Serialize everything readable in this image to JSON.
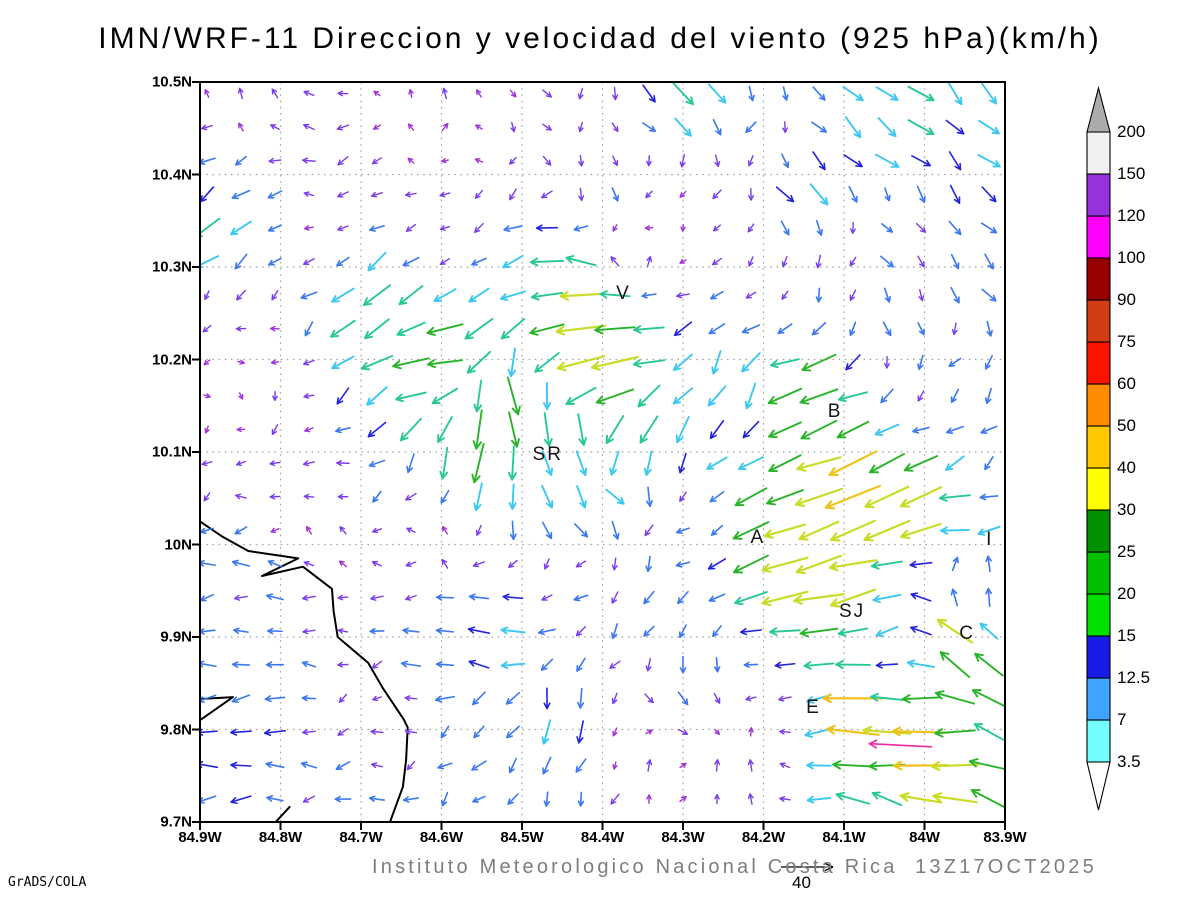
{
  "title": "IMN/WRF-11 Direccion y velocidad del viento (925 hPa)(km/h)",
  "footer": {
    "subtitle": "Instituto Meteorologico Nacional Costa Rica  13Z17OCT2025",
    "stamp": "GrADS/COLA",
    "ref_label": "40"
  },
  "chart_data": {
    "type": "vector_field",
    "variable": "wind direction and speed",
    "units": "km/h",
    "level": "925 hPa",
    "lon_west_range": [
      84.9,
      83.9
    ],
    "lat_range": [
      9.7,
      10.5
    ],
    "grid": {
      "cols": 24,
      "rows": 22
    },
    "reference_speed": 40,
    "x_ticks": [
      {
        "value": 84.9,
        "label": "84.9W"
      },
      {
        "value": 84.8,
        "label": "84.8W"
      },
      {
        "value": 84.7,
        "label": "84.7W"
      },
      {
        "value": 84.6,
        "label": "84.6W"
      },
      {
        "value": 84.5,
        "label": "84.5W"
      },
      {
        "value": 84.4,
        "label": "84.4W"
      },
      {
        "value": 84.3,
        "label": "84.3W"
      },
      {
        "value": 84.2,
        "label": "84.2W"
      },
      {
        "value": 84.1,
        "label": "84.1W"
      },
      {
        "value": 84.0,
        "label": "84W"
      },
      {
        "value": 83.9,
        "label": "83.9W"
      }
    ],
    "y_ticks": [
      {
        "value": 10.5,
        "label": "10.5N"
      },
      {
        "value": 10.4,
        "label": "10.4N"
      },
      {
        "value": 10.3,
        "label": "10.3N"
      },
      {
        "value": 10.2,
        "label": "10.2N"
      },
      {
        "value": 10.1,
        "label": "10.1N"
      },
      {
        "value": 10.0,
        "label": "10N"
      },
      {
        "value": 9.9,
        "label": "9.9N"
      },
      {
        "value": 9.8,
        "label": "9.8N"
      },
      {
        "value": 9.7,
        "label": "9.7N"
      }
    ],
    "colorbar": {
      "levels": [
        3.5,
        7,
        12.5,
        15,
        20,
        25,
        30,
        40,
        50,
        60,
        75,
        90,
        100,
        120,
        150,
        200
      ],
      "segment_colors": [
        "#73FFFF",
        "#3FA3FF",
        "#1A1AE6",
        "#00E000",
        "#00BE00",
        "#009000",
        "#FFFF00",
        "#FFC800",
        "#FF8C00",
        "#FA1400",
        "#D23C14",
        "#960000",
        "#FF00FF",
        "#9632DC",
        "#F0F0F0"
      ],
      "over_color": "#ABABAB",
      "under_color": "#FFFFFF"
    },
    "arrow_speed_colors": [
      [
        3.5,
        "#A132D7"
      ],
      [
        7,
        "#7A3CEB"
      ],
      [
        12.5,
        "#3C78F0"
      ],
      [
        15,
        "#2323DC"
      ],
      [
        20,
        "#3CC8F0"
      ],
      [
        25,
        "#28C896"
      ],
      [
        30,
        "#28B428"
      ],
      [
        40,
        "#C8DC28"
      ],
      [
        50,
        "#EFC21E"
      ],
      [
        60,
        "#F08C1E"
      ],
      [
        100,
        "#E63214"
      ],
      [
        9999,
        "#F028A0"
      ]
    ],
    "city_labels": [
      {
        "name": "V",
        "lon": 84.374,
        "lat": 10.271
      },
      {
        "name": "B",
        "lon": 84.111,
        "lat": 10.143
      },
      {
        "name": "SR",
        "lon": 84.468,
        "lat": 10.097
      },
      {
        "name": "A",
        "lon": 84.207,
        "lat": 10.007
      },
      {
        "name": "SJ",
        "lon": 84.09,
        "lat": 9.927
      },
      {
        "name": "C",
        "lon": 83.947,
        "lat": 9.903
      },
      {
        "name": "E",
        "lon": 84.138,
        "lat": 9.823
      },
      {
        "name": "I",
        "lon": 83.919,
        "lat": 10.005
      }
    ],
    "control_points": [
      {
        "lon": 84.85,
        "lat": 10.47,
        "u": -3,
        "v": 3
      },
      {
        "lon": 84.6,
        "lat": 10.47,
        "u": 0,
        "v": 4
      },
      {
        "lon": 84.45,
        "lat": 10.45,
        "u": 2,
        "v": -5
      },
      {
        "lon": 84.3,
        "lat": 10.48,
        "u": 14,
        "v": -12
      },
      {
        "lon": 84.05,
        "lat": 10.45,
        "u": 15,
        "v": -13
      },
      {
        "lon": 83.92,
        "lat": 10.42,
        "u": 13,
        "v": -11
      },
      {
        "lon": 84.88,
        "lat": 10.4,
        "u": -8,
        "v": -4
      },
      {
        "lon": 84.9,
        "lat": 10.35,
        "u": -20,
        "v": -13
      },
      {
        "lon": 84.9,
        "lat": 10.25,
        "u": -4,
        "v": -2
      },
      {
        "lon": 84.75,
        "lat": 10.33,
        "u": -4,
        "v": 1
      },
      {
        "lon": 84.6,
        "lat": 10.33,
        "u": -3,
        "v": -3
      },
      {
        "lon": 84.35,
        "lat": 10.32,
        "u": 1,
        "v": 8
      },
      {
        "lon": 84.35,
        "lat": 10.4,
        "u": -2,
        "v": -4
      },
      {
        "lon": 84.2,
        "lat": 10.42,
        "u": -5,
        "v": -5
      },
      {
        "lon": 84.15,
        "lat": 10.38,
        "u": 14,
        "v": -12
      },
      {
        "lon": 84.4,
        "lat": 10.38,
        "u": 6,
        "v": -7
      },
      {
        "lon": 84.35,
        "lat": 10.34,
        "u": -2,
        "v": -5
      },
      {
        "lon": 84.2,
        "lat": 10.3,
        "u": -4,
        "v": -3
      },
      {
        "lon": 84.05,
        "lat": 10.32,
        "u": 6,
        "v": -6
      },
      {
        "lon": 83.95,
        "lat": 10.27,
        "u": 7,
        "v": -7
      },
      {
        "lon": 83.91,
        "lat": 10.34,
        "u": 9,
        "v": -9
      },
      {
        "lon": 84.1,
        "lat": 10.33,
        "u": -3,
        "v": -5
      },
      {
        "lon": 83.92,
        "lat": 10.2,
        "u": -5,
        "v": -8
      },
      {
        "lon": 84.44,
        "lat": 10.3,
        "u": -25,
        "v": 2
      },
      {
        "lon": 84.42,
        "lat": 10.235,
        "u": -35,
        "v": -2
      },
      {
        "lon": 84.4,
        "lat": 10.195,
        "u": -35,
        "v": -3
      },
      {
        "lon": 84.05,
        "lat": 10.24,
        "u": 2,
        "v": -7
      },
      {
        "lon": 84.62,
        "lat": 10.2,
        "u": -30,
        "v": -6
      },
      {
        "lon": 84.55,
        "lat": 10.21,
        "u": -18,
        "v": -14
      },
      {
        "lon": 84.66,
        "lat": 10.25,
        "u": -18,
        "v": -16
      },
      {
        "lon": 84.72,
        "lat": 10.24,
        "u": -16,
        "v": -14
      },
      {
        "lon": 84.52,
        "lat": 10.16,
        "u": 10,
        "v": -26
      },
      {
        "lon": 84.46,
        "lat": 10.12,
        "u": 4,
        "v": -24
      },
      {
        "lon": 84.55,
        "lat": 10.1,
        "u": -5,
        "v": -30
      },
      {
        "lon": 84.48,
        "lat": 10.05,
        "u": 5,
        "v": -16
      },
      {
        "lon": 84.4,
        "lat": 10.04,
        "u": 10,
        "v": -12
      },
      {
        "lon": 84.35,
        "lat": 10.12,
        "u": -10,
        "v": -20
      },
      {
        "lon": 84.25,
        "lat": 10.17,
        "u": -8,
        "v": -14
      },
      {
        "lon": 84.13,
        "lat": 10.16,
        "u": -27,
        "v": -8
      },
      {
        "lon": 84.0,
        "lat": 10.17,
        "u": -5,
        "v": -5
      },
      {
        "lon": 83.92,
        "lat": 10.08,
        "u": -7,
        "v": -7
      },
      {
        "lon": 84.85,
        "lat": 10.18,
        "u": 2,
        "v": -1
      },
      {
        "lon": 84.8,
        "lat": 10.22,
        "u": -2,
        "v": -2
      },
      {
        "lon": 84.8,
        "lat": 10.12,
        "u": -4,
        "v": -2
      },
      {
        "lon": 84.75,
        "lat": 10.03,
        "u": -3,
        "v": 1
      },
      {
        "lon": 84.6,
        "lat": 10.0,
        "u": -3,
        "v": 2
      },
      {
        "lon": 84.45,
        "lat": 9.98,
        "u": -4,
        "v": -2
      },
      {
        "lon": 84.3,
        "lat": 10.02,
        "u": -5,
        "v": -3
      },
      {
        "lon": 84.18,
        "lat": 10.02,
        "u": -30,
        "v": -10
      },
      {
        "lon": 84.08,
        "lat": 10.05,
        "u": -42,
        "v": -16
      },
      {
        "lon": 83.95,
        "lat": 10.02,
        "u": -33,
        "v": -5
      },
      {
        "lon": 84.02,
        "lat": 10.04,
        "u": -28,
        "v": -18
      },
      {
        "lon": 84.12,
        "lat": 9.95,
        "u": -38,
        "v": -8
      },
      {
        "lon": 83.95,
        "lat": 9.965,
        "u": 10,
        "v": 10
      },
      {
        "lon": 83.93,
        "lat": 9.93,
        "u": 2,
        "v": 8
      },
      {
        "lon": 83.95,
        "lat": 9.905,
        "u": -25,
        "v": 20
      },
      {
        "lon": 83.91,
        "lat": 9.95,
        "u": -5,
        "v": 12
      },
      {
        "lon": 83.94,
        "lat": 10.02,
        "u": -7,
        "v": -2
      },
      {
        "lon": 84.05,
        "lat": 9.88,
        "u": -12,
        "v": -2
      },
      {
        "lon": 83.93,
        "lat": 9.85,
        "u": -24,
        "v": 14
      },
      {
        "lon": 84.85,
        "lat": 9.93,
        "u": -9,
        "v": 0
      },
      {
        "lon": 84.6,
        "lat": 9.89,
        "u": -12,
        "v": 0
      },
      {
        "lon": 84.52,
        "lat": 9.9,
        "u": -16,
        "v": 2
      },
      {
        "lon": 84.42,
        "lat": 9.9,
        "u": -6,
        "v": -7
      },
      {
        "lon": 84.3,
        "lat": 9.85,
        "u": 4,
        "v": -9
      },
      {
        "lon": 84.85,
        "lat": 9.8,
        "u": -13,
        "v": 0
      },
      {
        "lon": 84.7,
        "lat": 9.85,
        "u": -4,
        "v": -1
      },
      {
        "lon": 84.55,
        "lat": 9.78,
        "u": -6,
        "v": -6
      },
      {
        "lon": 84.45,
        "lat": 9.8,
        "u": -2,
        "v": -16
      },
      {
        "lon": 84.35,
        "lat": 9.76,
        "u": 3,
        "v": 5
      },
      {
        "lon": 84.22,
        "lat": 9.75,
        "u": 3,
        "v": 7
      },
      {
        "lon": 84.15,
        "lat": 9.82,
        "u": -4,
        "v": -3
      },
      {
        "lon": 84.1,
        "lat": 9.82,
        "u": -45,
        "v": 0
      },
      {
        "lon": 84.0,
        "lat": 9.78,
        "u": -40,
        "v": -4
      },
      {
        "lon": 84.05,
        "lat": 9.72,
        "u": -24,
        "v": 8
      },
      {
        "lon": 83.92,
        "lat": 9.73,
        "u": -26,
        "v": 10
      },
      {
        "lon": 84.2,
        "lat": 9.72,
        "u": -5,
        "v": 2
      },
      {
        "lon": 84.4,
        "lat": 9.73,
        "u": -2,
        "v": -7
      },
      {
        "lon": 84.55,
        "lat": 9.72,
        "u": -4,
        "v": -4
      },
      {
        "lon": 84.75,
        "lat": 9.72,
        "u": -8,
        "v": -1
      },
      {
        "lon": 84.88,
        "lat": 9.72,
        "u": -12,
        "v": 0
      }
    ],
    "extra_arrows": [
      {
        "lon": 84.03,
        "lat": 9.783,
        "u": -10,
        "v": 0.5,
        "speed": 100
      }
    ],
    "coastline": [
      [
        [
          84.9,
          10.025
        ],
        [
          84.873,
          10.009
        ],
        [
          84.84,
          9.993
        ],
        [
          84.778,
          9.985
        ],
        [
          84.823,
          9.966
        ],
        [
          84.772,
          9.976
        ],
        [
          84.736,
          9.952
        ],
        [
          84.734,
          9.928
        ],
        [
          84.729,
          9.9
        ],
        [
          84.691,
          9.872
        ],
        [
          84.673,
          9.845
        ],
        [
          84.647,
          9.811
        ],
        [
          84.642,
          9.802
        ],
        [
          84.644,
          9.767
        ],
        [
          84.648,
          9.738
        ],
        [
          84.664,
          9.7
        ]
      ],
      [
        [
          84.9,
          9.833
        ],
        [
          84.859,
          9.835
        ],
        [
          84.9,
          9.81
        ]
      ],
      [
        [
          84.806,
          9.7
        ],
        [
          84.788,
          9.717
        ]
      ]
    ]
  }
}
